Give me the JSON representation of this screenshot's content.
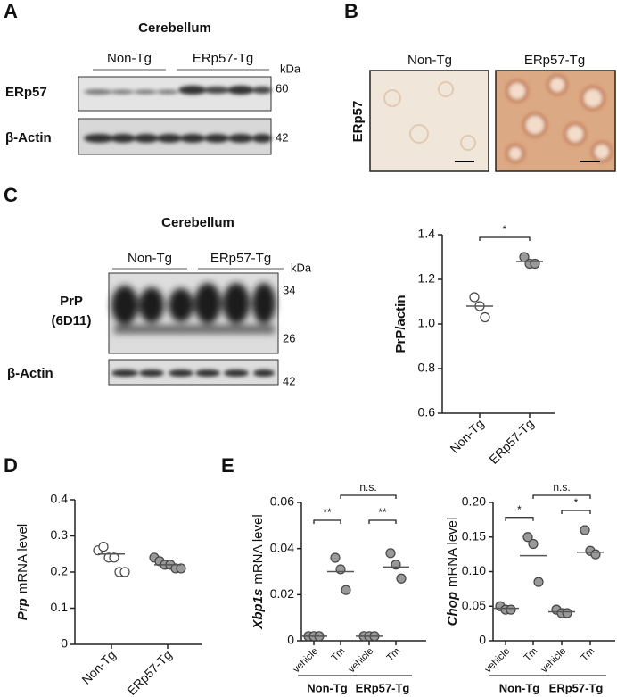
{
  "panels": {
    "a": "A",
    "b": "B",
    "c": "C",
    "d": "D",
    "e": "E"
  },
  "blot_a": {
    "title": "Cerebellum",
    "groups": [
      "Non-Tg",
      "ERp57-Tg"
    ],
    "unit": "kDa",
    "rows": [
      {
        "label": "ERp57",
        "marker": 60
      },
      {
        "label": "β-Actin",
        "marker": 42
      }
    ]
  },
  "images_b": {
    "labels": [
      "Non-Tg",
      "ERp57-Tg"
    ],
    "stain": "ERp57"
  },
  "blot_c": {
    "title": "Cerebellum",
    "groups": [
      "Non-Tg",
      "ERp57-Tg"
    ],
    "unit": "kDa",
    "rows": [
      {
        "label": [
          "PrP",
          "(6D11)"
        ],
        "markers": [
          34,
          26
        ]
      },
      {
        "label": [
          "β-Actin"
        ],
        "markers": [
          42
        ]
      }
    ]
  },
  "chart_data": [
    {
      "type": "dot",
      "ylabel": "PrP/actin",
      "ylim": [
        0.6,
        1.4
      ],
      "yticks": [
        0.6,
        0.8,
        {
          "value": 1,
          "label": "1.0"
        },
        1.2,
        1.4
      ],
      "categories": [
        "Non-Tg",
        "ERp57-Tg"
      ],
      "points": [
        [
          1.12,
          1.08,
          1.03
        ],
        [
          1.3,
          1.27,
          1.27
        ]
      ],
      "means": [
        1.08,
        1.28
      ],
      "point_colors": [
        "#ffffff",
        "#999999"
      ],
      "brackets": [
        {
          "from": 0,
          "to": 1,
          "label": "*"
        }
      ]
    },
    {
      "type": "dot",
      "ylabel_italic": "Prp",
      "ylabel": "mRNA level",
      "ylim": [
        0,
        0.4
      ],
      "yticks": [
        0,
        0.1,
        0.2,
        0.3,
        0.4
      ],
      "categories": [
        "Non-Tg",
        "ERp57-Tg"
      ],
      "points": [
        [
          0.26,
          0.27,
          0.24,
          0.24,
          0.2,
          0.2
        ],
        [
          0.24,
          0.23,
          0.22,
          0.22,
          0.21,
          0.21
        ]
      ],
      "means": [
        0.25,
        0.22
      ],
      "point_colors": [
        "#ffffff",
        "#999999"
      ]
    },
    {
      "type": "dot",
      "ylabel_italic": "Xbp1s",
      "ylabel": "mRNA level",
      "ylim": [
        0,
        0.06
      ],
      "yticks": [
        0,
        0.02,
        0.04,
        0.06
      ],
      "categories": [
        "vehicle",
        "Tm",
        "vehicle",
        "Tm"
      ],
      "points": [
        [
          0.002,
          0.002,
          0.002
        ],
        [
          0.036,
          0.031,
          0.022
        ],
        [
          0.002,
          0.002,
          0.002
        ],
        [
          0.038,
          0.033,
          0.027
        ]
      ],
      "means": [
        0.002,
        0.03,
        0.002,
        0.032
      ],
      "point_colors": [
        "#999999",
        "#999999",
        "#999999",
        "#999999"
      ],
      "brackets": [
        {
          "from": 0,
          "to": 1,
          "label": "**"
        },
        {
          "from": 2,
          "to": 3,
          "label": "**"
        },
        {
          "from": 1,
          "to": 3,
          "label": "n.s."
        }
      ],
      "groups": [
        {
          "label": "Non-Tg",
          "from": 0,
          "to": 1
        },
        {
          "label": "ERp57-Tg",
          "from": 2,
          "to": 3
        }
      ]
    },
    {
      "type": "dot",
      "ylabel_italic": "Chop",
      "ylabel": "mRNA level",
      "ylim": [
        0,
        0.2
      ],
      "yticks": [
        0,
        0.05,
        {
          "value": 0.1,
          "label": "0.10"
        },
        0.15,
        {
          "value": 0.2,
          "label": "0.20"
        }
      ],
      "categories": [
        "vehicle",
        "Tm",
        "vehicle",
        "Tm"
      ],
      "points": [
        [
          0.05,
          0.045,
          0.045
        ],
        [
          0.15,
          0.14,
          0.085
        ],
        [
          0.045,
          0.04,
          0.04
        ],
        [
          0.16,
          0.13,
          0.125
        ]
      ],
      "means": [
        0.047,
        0.123,
        0.042,
        0.128
      ],
      "point_colors": [
        "#999999",
        "#999999",
        "#999999",
        "#999999"
      ],
      "brackets": [
        {
          "from": 0,
          "to": 1,
          "label": "*"
        },
        {
          "from": 2,
          "to": 3,
          "label": "*"
        },
        {
          "from": 1,
          "to": 3,
          "label": "n.s."
        }
      ],
      "groups": [
        {
          "label": "Non-Tg",
          "from": 0,
          "to": 1
        },
        {
          "label": "ERp57-Tg",
          "from": 2,
          "to": 3
        }
      ]
    }
  ]
}
